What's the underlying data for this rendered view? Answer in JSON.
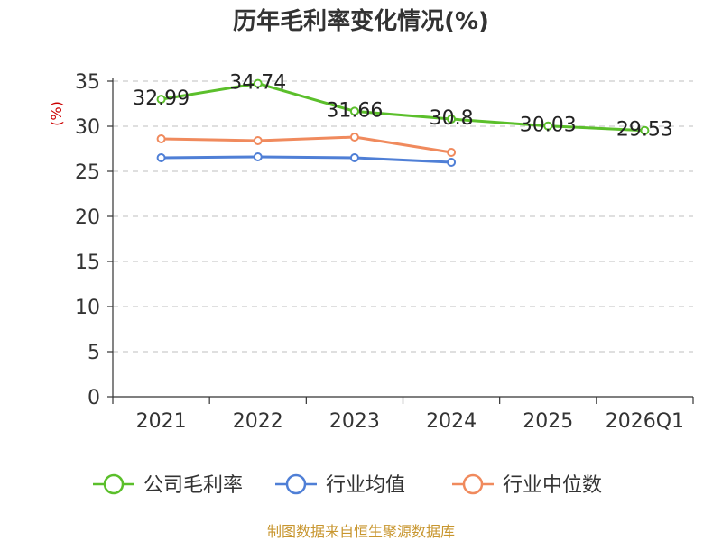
{
  "chart_data": {
    "type": "line",
    "title": "历年毛利率变化情况(%)",
    "ylabel": "(%)",
    "xlabel": "",
    "categories": [
      "2021",
      "2022",
      "2023",
      "2024",
      "2025",
      "2026Q1"
    ],
    "ylim": [
      0,
      35
    ],
    "yticks": [
      0,
      5,
      10,
      15,
      20,
      25,
      30,
      35
    ],
    "grid": true,
    "legend_position": "bottom",
    "series": [
      {
        "name": "公司毛利率",
        "color": "#5bbf2b",
        "values": [
          32.99,
          34.74,
          31.66,
          30.8,
          30.03,
          29.53
        ],
        "labels": [
          "32.99",
          "34.74",
          "31.66",
          "30.8",
          "30.03",
          "29.53"
        ]
      },
      {
        "name": "行业均值",
        "color": "#4f7fd6",
        "values": [
          26.5,
          26.6,
          26.5,
          26.0,
          null,
          null
        ]
      },
      {
        "name": "行业中位数",
        "color": "#f08a5d",
        "values": [
          28.6,
          28.4,
          28.8,
          27.1,
          null,
          null
        ]
      }
    ],
    "source": "制图数据来自恒生聚源数据库"
  }
}
